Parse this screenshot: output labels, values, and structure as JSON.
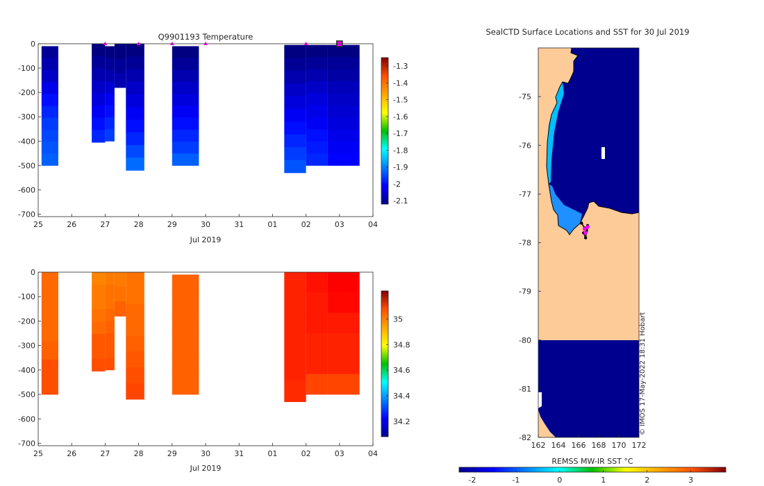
{
  "colors": {
    "land": "#fdcb98",
    "ocean": "#00008f",
    "marker": "#ff00ff",
    "ice": "#ffffff",
    "track": "#000000"
  },
  "chart_data": [
    {
      "type": "heatmap",
      "title": "Q9901193  Temperature",
      "xlabel": "Jul 2019",
      "x_ticks": [
        "25",
        "26",
        "27",
        "28",
        "29",
        "30",
        "31",
        "01",
        "02",
        "03",
        "04"
      ],
      "y_ticks": [
        "0",
        "-100",
        "-200",
        "-300",
        "-400",
        "-500",
        "-600",
        "-700"
      ],
      "ylim": [
        -710,
        0
      ],
      "colorbar_ticks": [
        "-1.3",
        "-1.4",
        "-1.5",
        "-1.6",
        "-1.7",
        "-1.8",
        "-1.9",
        "-2",
        "-2.1"
      ],
      "clim": [
        -2.12,
        -1.25
      ],
      "colormap": "jet",
      "surface_marker_days": [
        2,
        3,
        4,
        5,
        8,
        9
      ],
      "profiles": [
        {
          "start": 0.1,
          "end": 0.6,
          "top": 10,
          "bottom": 500,
          "values": [
            -2.1,
            -2.08,
            -2.06,
            -2.03,
            -2.0,
            -1.98,
            -1.96,
            -1.95,
            -1.94,
            -1.93
          ]
        },
        {
          "start": 1.6,
          "end": 2.0,
          "top": 0,
          "bottom": 405,
          "values": [
            -2.12,
            -2.1,
            -2.08,
            -2.06,
            -2.04,
            -2.02,
            -2.0,
            -1.98
          ]
        },
        {
          "start": 2.0,
          "end": 2.28,
          "top": 10,
          "bottom": 400,
          "values": [
            -2.12,
            -2.1,
            -2.08,
            -2.05,
            -2.02,
            -2.0,
            -1.98,
            -1.96
          ]
        },
        {
          "start": 2.28,
          "end": 2.62,
          "top": 0,
          "bottom": 180,
          "values": [
            -2.12,
            -2.1,
            -2.08
          ]
        },
        {
          "start": 2.62,
          "end": 3.17,
          "top": 0,
          "bottom": 520,
          "values": [
            -2.12,
            -2.1,
            -2.08,
            -2.06,
            -2.04,
            -2.02,
            -2.0,
            -1.98,
            -1.95,
            -1.92
          ]
        },
        {
          "start": 4.0,
          "end": 4.8,
          "top": 10,
          "bottom": 500,
          "values": [
            -2.12,
            -2.1,
            -2.08,
            -2.06,
            -2.04,
            -2.02,
            -2.0,
            -1.98,
            -1.96,
            -1.93
          ]
        },
        {
          "start": 7.35,
          "end": 8.0,
          "top": 5,
          "bottom": 530,
          "values": [
            -2.12,
            -2.1,
            -2.08,
            -2.06,
            -2.04,
            -2.02,
            -2.0,
            -1.98,
            -1.96,
            -1.94
          ]
        },
        {
          "start": 8.0,
          "end": 8.65,
          "top": 5,
          "bottom": 500,
          "values": [
            -2.12,
            -2.1,
            -2.08,
            -2.06,
            -2.04,
            -2.03,
            -2.02,
            -2.0,
            -1.99,
            -1.98
          ]
        },
        {
          "start": 8.65,
          "end": 9.6,
          "top": 5,
          "bottom": 500,
          "values": [
            -2.12,
            -2.1,
            -2.09,
            -2.07,
            -2.06,
            -2.05,
            -2.04,
            -2.03,
            -2.02,
            -2.01
          ]
        }
      ]
    },
    {
      "type": "heatmap",
      "title": "",
      "xlabel": "Jul 2019",
      "x_ticks": [
        "25",
        "26",
        "27",
        "28",
        "29",
        "30",
        "31",
        "01",
        "02",
        "03",
        "04"
      ],
      "y_ticks": [
        "0",
        "-100",
        "-200",
        "-300",
        "-400",
        "-500",
        "-600",
        "-700"
      ],
      "ylim": [
        -710,
        0
      ],
      "colorbar_ticks": [
        "35",
        "34.8",
        "34.6",
        "34.4",
        "34.2"
      ],
      "clim": [
        34.08,
        35.22
      ],
      "colormap": "jet",
      "profiles": [
        {
          "start": 0.1,
          "end": 0.6,
          "top": 0,
          "bottom": 500,
          "values": [
            34.96,
            34.96,
            34.96,
            34.96,
            34.97,
            34.99,
            34.99
          ]
        },
        {
          "start": 1.6,
          "end": 2.0,
          "top": 0,
          "bottom": 405,
          "values": [
            34.93,
            34.94,
            34.94,
            34.95,
            34.96,
            34.98,
            34.98,
            34.99
          ]
        },
        {
          "start": 2.0,
          "end": 2.28,
          "top": 0,
          "bottom": 400,
          "values": [
            34.94,
            34.95,
            34.95,
            34.96,
            34.97,
            34.98,
            34.98,
            34.99
          ]
        },
        {
          "start": 2.28,
          "end": 2.62,
          "top": 0,
          "bottom": 180,
          "values": [
            34.94,
            34.95,
            34.97
          ]
        },
        {
          "start": 2.62,
          "end": 3.17,
          "top": 0,
          "bottom": 520,
          "values": [
            34.95,
            34.95,
            34.96,
            34.96,
            34.97,
            34.98,
            34.99,
            35.0
          ]
        },
        {
          "start": 4.0,
          "end": 4.8,
          "top": 10,
          "bottom": 500,
          "values": [
            34.97,
            34.97,
            34.97,
            34.97,
            34.97,
            34.97
          ]
        },
        {
          "start": 7.35,
          "end": 8.0,
          "top": 0,
          "bottom": 530,
          "values": [
            35.04,
            35.04,
            35.04,
            35.04,
            35.04,
            35.03
          ]
        },
        {
          "start": 8.0,
          "end": 8.65,
          "top": 0,
          "bottom": 500,
          "values": [
            35.06,
            35.05,
            35.05,
            35.04,
            35.04,
            35.0
          ]
        },
        {
          "start": 8.65,
          "end": 9.6,
          "top": 0,
          "bottom": 500,
          "values": [
            35.08,
            35.07,
            35.05,
            35.04,
            35.04,
            35.0
          ]
        }
      ]
    },
    {
      "type": "heatmap",
      "title": "SealCTD Surface Locations and SST for 30 Jul 2019",
      "xlabel": "",
      "x_ticks": [
        "162",
        "164",
        "166",
        "168",
        "170",
        "172"
      ],
      "y_ticks": [
        "-75",
        "-76",
        "-77",
        "-78",
        "-79",
        "-80",
        "-81",
        "-82"
      ],
      "xlim": [
        162,
        172
      ],
      "ylim": [
        -82,
        -74
      ],
      "colorbar_label": "REMSS MW-IR SST °C",
      "colorbar_ticks": [
        "-2",
        "-1",
        "0",
        "1",
        "2",
        "3"
      ],
      "clim": [
        -2.3,
        3.8
      ],
      "colormap": "jet",
      "side_annotation": "© IMOS 17-May-2022 18:31 Hobart",
      "track_points": [
        [
          166.3,
          -77.6
        ],
        [
          166.6,
          -77.7
        ],
        [
          166.8,
          -77.75
        ],
        [
          166.5,
          -77.8
        ],
        [
          166.7,
          -77.9
        ],
        [
          166.9,
          -77.65
        ]
      ],
      "surface_markers": [
        [
          166.6,
          -77.72
        ],
        [
          166.9,
          -77.68
        ],
        [
          166.7,
          -77.8
        ]
      ]
    }
  ]
}
